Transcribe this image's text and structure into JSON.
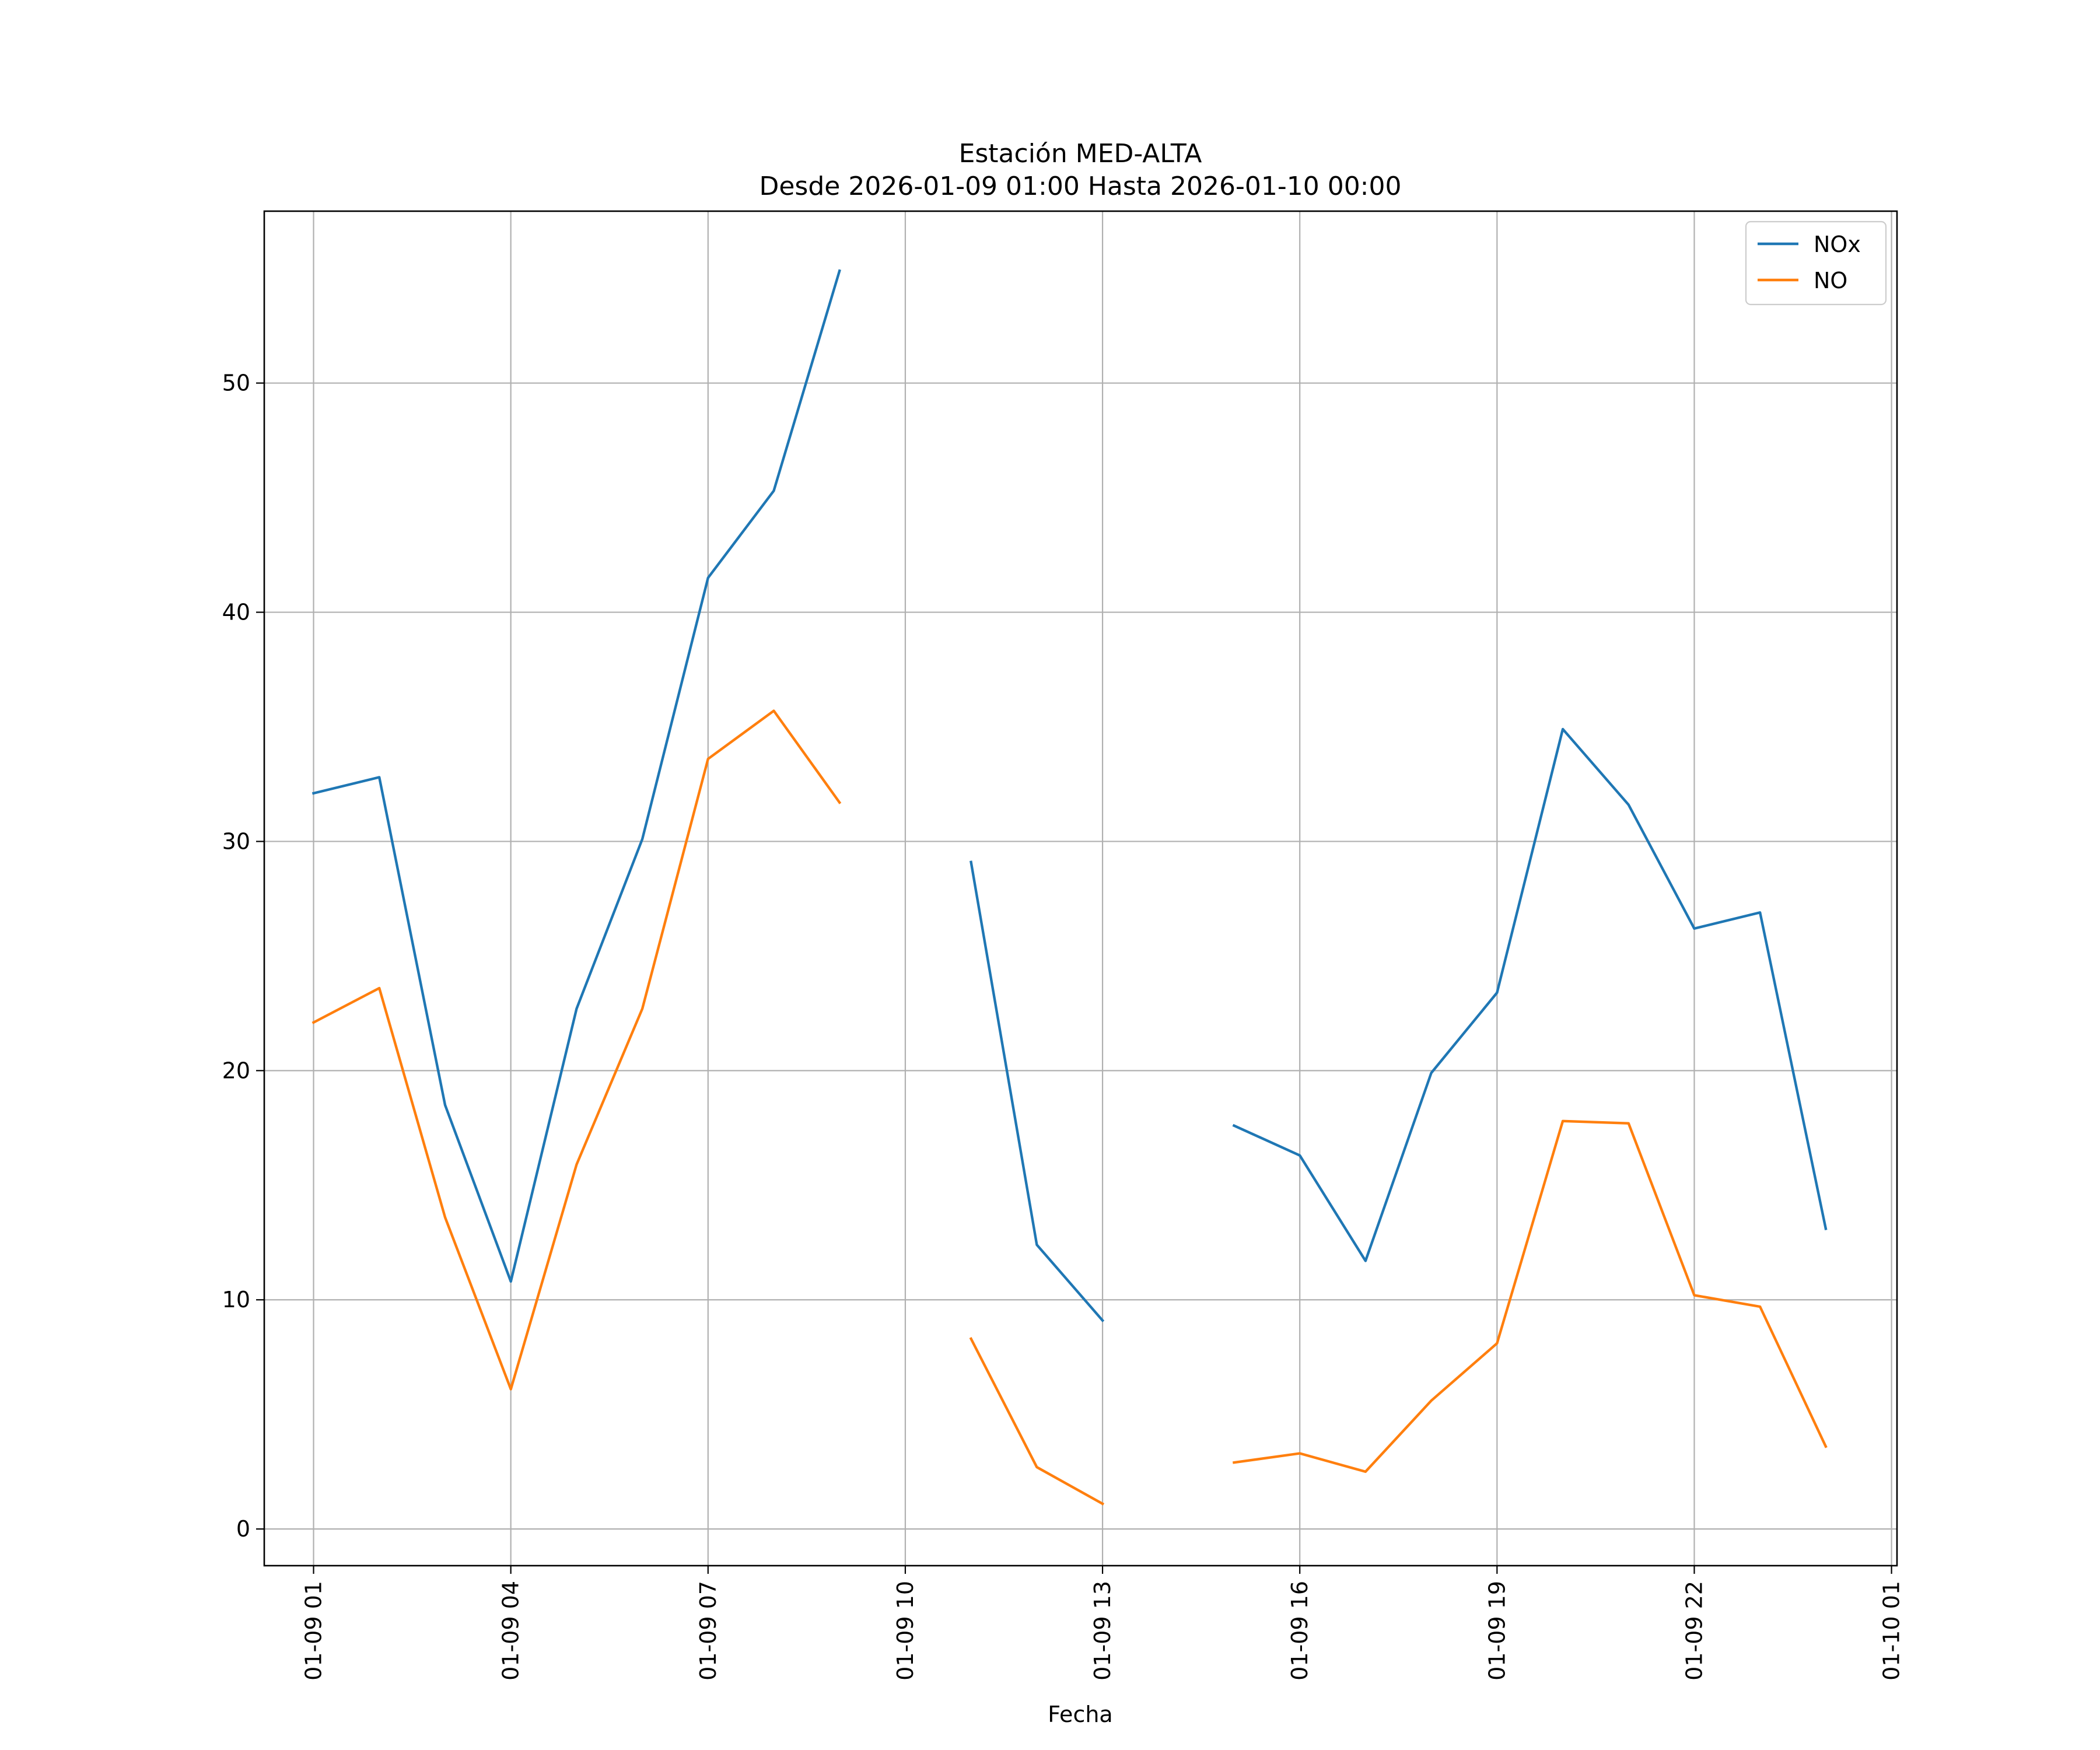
{
  "chart_data": {
    "type": "line",
    "title": "Estación MED-ALTA",
    "subtitle": "Desde 2026-01-09 01:00 Hasta 2026-01-10 00:00",
    "xlabel": "Fecha",
    "ylabel": "",
    "x": [
      "01-09 01",
      "01-09 02",
      "01-09 03",
      "01-09 04",
      "01-09 05",
      "01-09 06",
      "01-09 07",
      "01-09 08",
      "01-09 09",
      "01-09 10",
      "01-09 11",
      "01-09 12",
      "01-09 13",
      "01-09 14",
      "01-09 15",
      "01-09 16",
      "01-09 17",
      "01-09 18",
      "01-09 19",
      "01-09 20",
      "01-09 21",
      "01-09 22",
      "01-09 23",
      "01-10 00"
    ],
    "xlim": [
      "01-09 00:15",
      "01-10 01:05"
    ],
    "x_ticks": [
      "01-09 01",
      "01-09 04",
      "01-09 07",
      "01-09 10",
      "01-09 13",
      "01-09 16",
      "01-09 19",
      "01-09 22",
      "01-10 01"
    ],
    "ylim": [
      -1.6,
      57.5
    ],
    "y_ticks": [
      0,
      10,
      20,
      30,
      40,
      50
    ],
    "grid": true,
    "legend_position": "top-right",
    "series": [
      {
        "name": "NOx",
        "color": "#1f77b4",
        "values": [
          32.1,
          32.8,
          18.5,
          10.8,
          22.7,
          30.1,
          41.5,
          45.3,
          54.9,
          null,
          29.1,
          12.4,
          9.1,
          null,
          17.6,
          16.3,
          11.7,
          19.9,
          23.4,
          34.9,
          31.6,
          26.2,
          26.9,
          13.1
        ]
      },
      {
        "name": "NO",
        "color": "#ff7f0e",
        "values": [
          22.1,
          23.6,
          13.6,
          6.1,
          15.9,
          22.7,
          33.6,
          35.7,
          31.7,
          null,
          8.3,
          2.7,
          1.1,
          null,
          2.9,
          3.3,
          2.5,
          5.6,
          8.1,
          17.8,
          17.7,
          10.2,
          9.7,
          3.6
        ]
      }
    ]
  }
}
